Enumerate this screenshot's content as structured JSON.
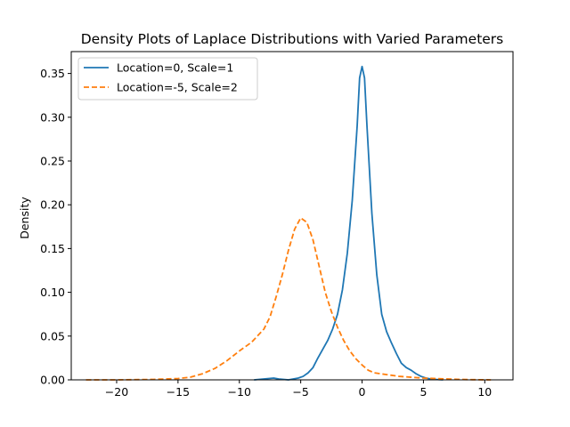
{
  "chart_data": {
    "type": "line",
    "title": "Density Plots of Laplace Distributions with Varied Parameters",
    "xlabel": "",
    "ylabel": "Density",
    "xlim": [
      -23.7,
      12.3
    ],
    "ylim": [
      0,
      0.375
    ],
    "xticks": [
      -20,
      -15,
      -10,
      -5,
      0,
      5,
      10
    ],
    "xtick_labels": [
      "−20",
      "−15",
      "−10",
      "−5",
      "0",
      "5",
      "10"
    ],
    "yticks": [
      0.0,
      0.05,
      0.1,
      0.15,
      0.2,
      0.25,
      0.3,
      0.35
    ],
    "ytick_labels": [
      "0.00",
      "0.05",
      "0.10",
      "0.15",
      "0.20",
      "0.25",
      "0.30",
      "0.35"
    ],
    "grid": false,
    "legend_position": "top-left",
    "series": [
      {
        "name": "Location=0, Scale=1",
        "color": "#1f77b4",
        "linestyle": "solid",
        "x": [
          -8.8,
          -8.0,
          -7.2,
          -6.8,
          -6.0,
          -5.2,
          -4.8,
          -4.4,
          -4.0,
          -3.6,
          -3.2,
          -2.8,
          -2.4,
          -2.0,
          -1.6,
          -1.2,
          -0.8,
          -0.4,
          -0.2,
          0.0,
          0.2,
          0.4,
          0.8,
          1.2,
          1.6,
          2.0,
          2.4,
          2.8,
          3.2,
          3.6,
          4.0,
          4.4,
          4.8,
          5.2,
          5.6,
          6.0,
          6.6
        ],
        "y": [
          0.0,
          0.001,
          0.002,
          0.001,
          0.0,
          0.002,
          0.004,
          0.008,
          0.014,
          0.025,
          0.035,
          0.045,
          0.058,
          0.075,
          0.103,
          0.145,
          0.205,
          0.29,
          0.345,
          0.358,
          0.345,
          0.29,
          0.19,
          0.12,
          0.075,
          0.055,
          0.042,
          0.03,
          0.019,
          0.014,
          0.011,
          0.007,
          0.004,
          0.002,
          0.001,
          0.0005,
          0.0
        ]
      },
      {
        "name": "Location=-5, Scale=2",
        "color": "#ff7f0e",
        "linestyle": "dashed",
        "x": [
          -22.5,
          -20.0,
          -17.0,
          -15.0,
          -14.0,
          -13.0,
          -12.0,
          -11.0,
          -10.0,
          -9.0,
          -8.0,
          -7.5,
          -7.0,
          -6.5,
          -6.0,
          -5.5,
          -5.0,
          -4.5,
          -4.0,
          -3.5,
          -3.0,
          -2.5,
          -2.0,
          -1.5,
          -1.0,
          -0.5,
          0.0,
          0.5,
          1.0,
          2.0,
          3.0,
          4.0,
          5.0,
          6.0,
          7.0,
          8.0,
          9.0,
          10.5
        ],
        "y": [
          0.0,
          0.0,
          0.0005,
          0.0015,
          0.003,
          0.007,
          0.013,
          0.022,
          0.033,
          0.043,
          0.058,
          0.072,
          0.095,
          0.12,
          0.148,
          0.172,
          0.185,
          0.18,
          0.16,
          0.13,
          0.1,
          0.078,
          0.06,
          0.045,
          0.033,
          0.024,
          0.017,
          0.011,
          0.008,
          0.006,
          0.004,
          0.003,
          0.002,
          0.0015,
          0.001,
          0.0005,
          0.0002,
          0.0
        ]
      }
    ]
  }
}
